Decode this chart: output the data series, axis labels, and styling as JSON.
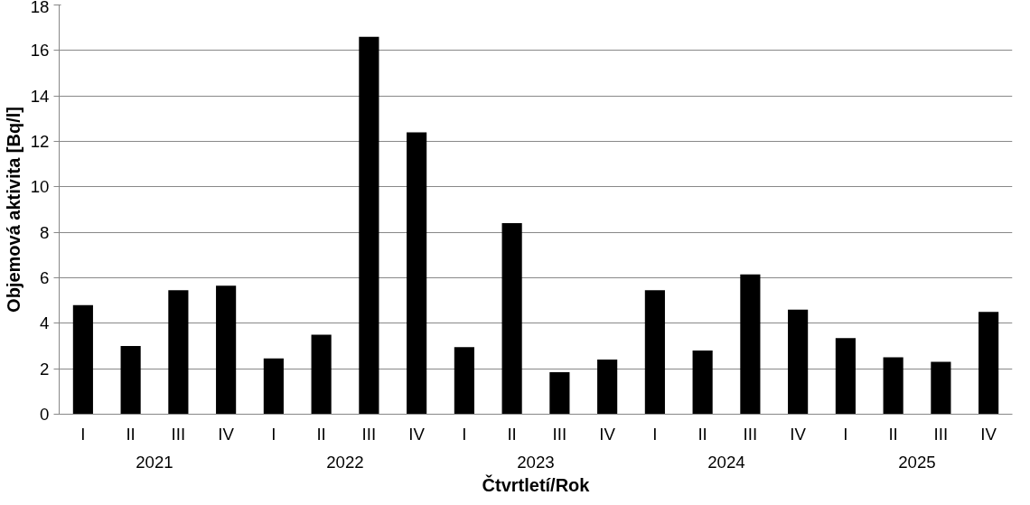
{
  "chart_data": {
    "type": "bar",
    "xlabel": "Čtvrtletí/Rok",
    "ylabel": "Objemová aktivita [Bq/l]",
    "categories": [
      "I",
      "II",
      "III",
      "IV",
      "I",
      "II",
      "III",
      "IV",
      "I",
      "II",
      "III",
      "IV",
      "I",
      "II",
      "III",
      "IV",
      "I",
      "II",
      "III",
      "IV"
    ],
    "annotations": [
      "2021",
      "2022",
      "2023",
      "2024",
      "2025"
    ],
    "values": [
      4.8,
      3.0,
      5.45,
      5.65,
      2.45,
      3.5,
      16.6,
      12.4,
      2.95,
      8.4,
      1.85,
      2.4,
      5.45,
      2.8,
      6.15,
      4.6,
      3.35,
      2.5,
      2.3,
      4.5
    ],
    "color": "#000000",
    "ylim": [
      0,
      18
    ],
    "yticks": [
      0,
      2,
      4,
      6,
      8,
      10,
      12,
      14,
      16,
      18
    ],
    "grid": "y"
  }
}
